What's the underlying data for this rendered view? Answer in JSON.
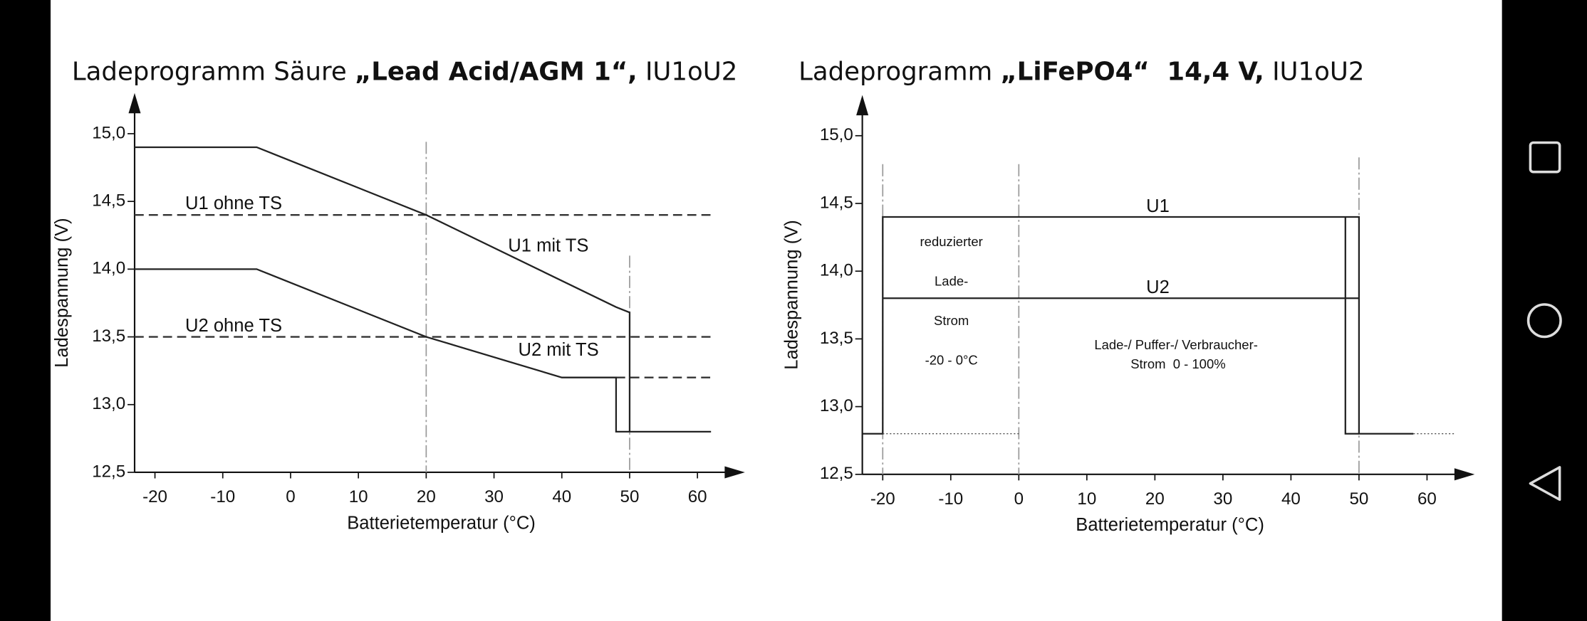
{
  "chart_data": [
    {
      "type": "line",
      "title": [
        {
          "text": "Ladeprogramm Säure "
        },
        {
          "text": "„Lead Acid/AGM 1“,",
          "bold": true
        },
        {
          "text": " IU1oU2"
        }
      ],
      "x_label": "Batterietemperatur (°C)",
      "y_label": "Ladespannung (V)",
      "xlim": [
        -23,
        67
      ],
      "ylim": [
        12.5,
        15.3
      ],
      "xticks": [
        -20,
        -10,
        0,
        10,
        20,
        30,
        40,
        50,
        60
      ],
      "yticks": [
        {
          "value": 12.5,
          "label": "12,5"
        },
        {
          "value": 13,
          "label": "13,0"
        },
        {
          "value": 13.5,
          "label": "13,5"
        },
        {
          "value": 14,
          "label": "14,0"
        },
        {
          "value": 14.5,
          "label": "14,5"
        },
        {
          "value": 15,
          "label": "15,0"
        }
      ],
      "series": [
        {
          "name": "U1 ohne TS",
          "style": "dashed",
          "color": "#333",
          "x": [
            -23,
            62
          ],
          "values": [
            14.4,
            14.4
          ]
        },
        {
          "name": "U2 ohne TS",
          "style": "dashed",
          "color": "#333",
          "x": [
            -23,
            62
          ],
          "values": [
            13.5,
            13.5
          ]
        },
        {
          "style": "dashed",
          "color": "#333",
          "x": [
            48,
            62
          ],
          "values": [
            13.2,
            13.2
          ]
        },
        {
          "name": "U1 mit TS",
          "style": "solid",
          "color": "#222",
          "x": [
            -23,
            -5,
            20,
            48,
            50,
            50,
            62
          ],
          "values": [
            14.9,
            14.9,
            14.4,
            13.72,
            13.68,
            12.8,
            12.8
          ]
        },
        {
          "name": "U2 mit TS",
          "style": "solid",
          "color": "#222",
          "x": [
            -23,
            -5,
            20,
            40,
            48,
            48,
            50
          ],
          "values": [
            14,
            14,
            13.5,
            13.2,
            13.2,
            12.8,
            12.8
          ]
        }
      ],
      "vlines": [
        {
          "x": 20,
          "top": 14.94
        },
        {
          "x": 50,
          "top": 14.1
        }
      ]
    },
    {
      "type": "line",
      "title": [
        {
          "text": "Ladeprogramm "
        },
        {
          "text": "„LiFePO4“  14,4 V,",
          "bold": true
        },
        {
          "text": " IU1oU2"
        }
      ],
      "x_label": "Batterietemperatur (°C)",
      "y_label": "Ladespannung (V)",
      "xlim": [
        -23,
        67
      ],
      "ylim": [
        12.5,
        15.3
      ],
      "xticks": [
        -20,
        -10,
        0,
        10,
        20,
        30,
        40,
        50,
        60
      ],
      "yticks": [
        {
          "value": 12.5,
          "label": "12,5"
        },
        {
          "value": 13,
          "label": "13,0"
        },
        {
          "value": 13.5,
          "label": "13,5"
        },
        {
          "value": 14,
          "label": "14,0"
        },
        {
          "value": 14.5,
          "label": "14,5"
        },
        {
          "value": 15,
          "label": "15,0"
        }
      ],
      "series": [
        {
          "name": "U1",
          "style": "solid",
          "color": "#222",
          "x": [
            -23,
            -20,
            -20,
            50,
            50,
            58
          ],
          "values": [
            12.8,
            12.8,
            14.4,
            14.4,
            12.8,
            12.8
          ]
        },
        {
          "style": "solid",
          "color": "#222",
          "x": [
            48,
            48,
            50
          ],
          "values": [
            14.4,
            12.8,
            12.8
          ]
        },
        {
          "name": "U2",
          "style": "solid",
          "color": "#222",
          "x": [
            -20,
            50
          ],
          "values": [
            13.8,
            13.8
          ]
        },
        {
          "style": "dotted",
          "color": "#555",
          "x": [
            -20,
            0
          ],
          "values": [
            12.8,
            12.8
          ]
        },
        {
          "style": "dotted",
          "color": "#555",
          "x": [
            58,
            64
          ],
          "values": [
            12.8,
            12.8
          ]
        }
      ],
      "vlines": [
        {
          "x": -20,
          "top": 14.79
        },
        {
          "x": 0,
          "top": 14.79
        },
        {
          "x": 50,
          "top": 14.84
        }
      ],
      "annotations": [
        {
          "text": "reduzierter"
        },
        {
          "text": "Lade-"
        },
        {
          "text": "Strom"
        },
        {
          "text": "-20 - 0°C"
        },
        {
          "text": "Lade-/ Puffer-/ Verbraucher-"
        },
        {
          "text": "Strom  0 - 100%"
        }
      ]
    }
  ]
}
